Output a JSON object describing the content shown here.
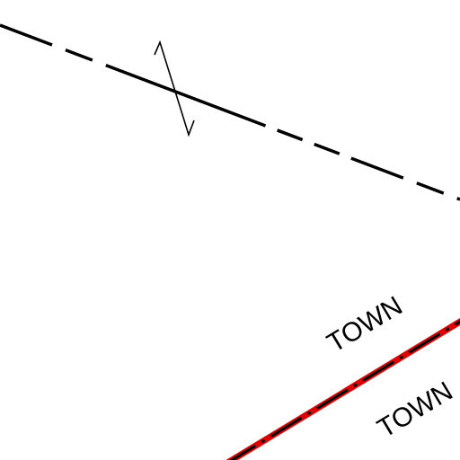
{
  "map": {
    "labels": [
      "TOWN",
      "TOWN"
    ]
  }
}
